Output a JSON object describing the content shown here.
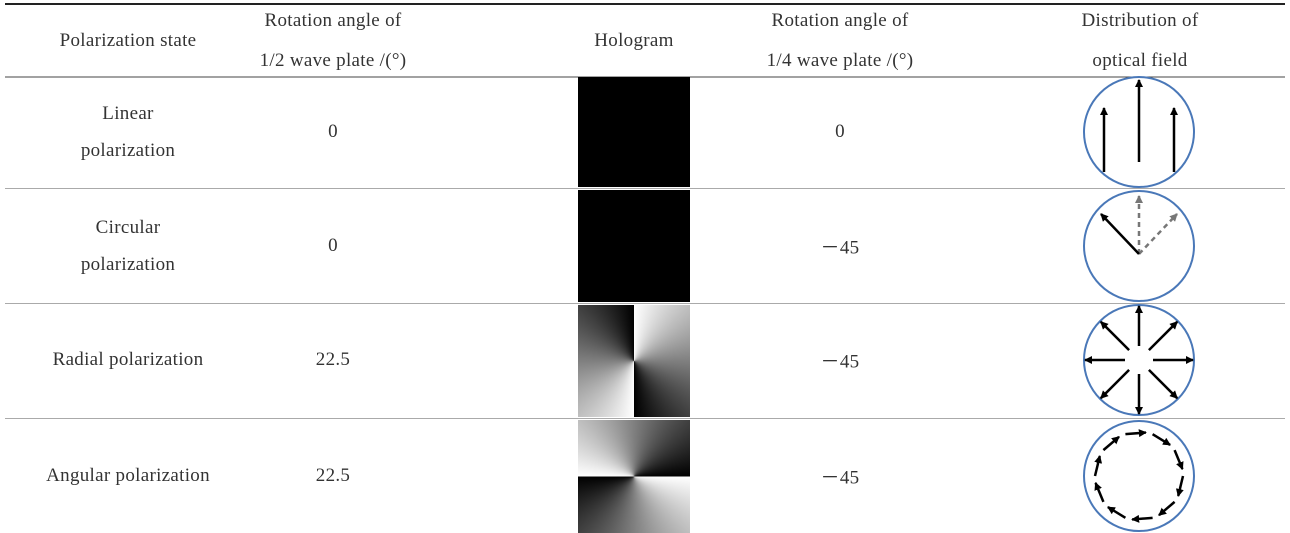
{
  "table": {
    "header": [
      [
        "Polarization state"
      ],
      [
        "Rotation angle of",
        "1/2 wave plate /(°)"
      ],
      [
        "Hologram"
      ],
      [
        "Rotation angle of",
        "1/4 wave plate /(°)"
      ],
      [
        "Distribution of",
        "optical field"
      ]
    ],
    "rows": [
      {
        "state": [
          "Linear",
          "polarization"
        ],
        "half_wave": "0",
        "quarter_wave": "0"
      },
      {
        "state": [
          "Circular",
          "polarization"
        ],
        "half_wave": "0",
        "quarter_wave": "－45"
      },
      {
        "state": [
          "Radial polarization"
        ],
        "half_wave": "22.5",
        "quarter_wave": "－45"
      },
      {
        "state": [
          "Angular polarization"
        ],
        "half_wave": "22.5",
        "quarter_wave": "－45"
      }
    ]
  }
}
